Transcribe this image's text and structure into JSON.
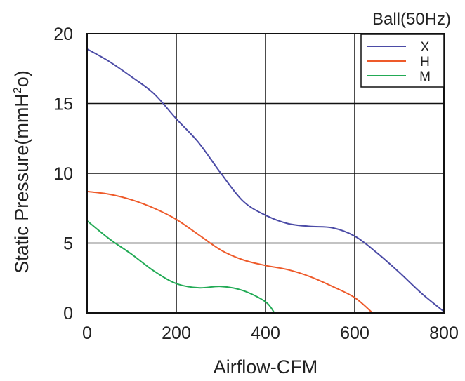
{
  "chart_data": {
    "type": "line",
    "title": "Ball(50Hz)",
    "xlabel": "Airflow-CFM",
    "ylabel_main": "Static Pressure(mmH",
    "ylabel_sup": "2",
    "ylabel_tail": "o)",
    "xlim": [
      0,
      800
    ],
    "ylim": [
      0,
      20
    ],
    "x_ticks": [
      "0",
      "200",
      "400",
      "600",
      "800"
    ],
    "y_ticks": [
      "0",
      "5",
      "10",
      "15",
      "20"
    ],
    "grid": true,
    "legend_position": "top-right",
    "series": [
      {
        "name": "X",
        "color": "#4b4ba6",
        "points": [
          [
            0,
            18.9
          ],
          [
            50,
            18.0
          ],
          [
            100,
            16.9
          ],
          [
            150,
            15.7
          ],
          [
            200,
            13.9
          ],
          [
            250,
            12.2
          ],
          [
            300,
            10.0
          ],
          [
            350,
            8.0
          ],
          [
            400,
            7.0
          ],
          [
            450,
            6.4
          ],
          [
            500,
            6.2
          ],
          [
            550,
            6.1
          ],
          [
            600,
            5.5
          ],
          [
            650,
            4.3
          ],
          [
            700,
            2.9
          ],
          [
            750,
            1.4
          ],
          [
            800,
            0.1
          ]
        ]
      },
      {
        "name": "H",
        "color": "#ee5a2a",
        "points": [
          [
            0,
            8.7
          ],
          [
            50,
            8.5
          ],
          [
            100,
            8.1
          ],
          [
            150,
            7.5
          ],
          [
            200,
            6.7
          ],
          [
            250,
            5.6
          ],
          [
            300,
            4.5
          ],
          [
            350,
            3.8
          ],
          [
            400,
            3.4
          ],
          [
            450,
            3.1
          ],
          [
            500,
            2.6
          ],
          [
            550,
            1.9
          ],
          [
            600,
            1.1
          ],
          [
            640,
            0.0
          ]
        ]
      },
      {
        "name": "M",
        "color": "#22aa55",
        "points": [
          [
            0,
            6.6
          ],
          [
            50,
            5.3
          ],
          [
            100,
            4.2
          ],
          [
            150,
            3.0
          ],
          [
            200,
            2.1
          ],
          [
            250,
            1.8
          ],
          [
            300,
            1.9
          ],
          [
            350,
            1.6
          ],
          [
            400,
            0.8
          ],
          [
            420,
            0.0
          ]
        ]
      }
    ]
  }
}
